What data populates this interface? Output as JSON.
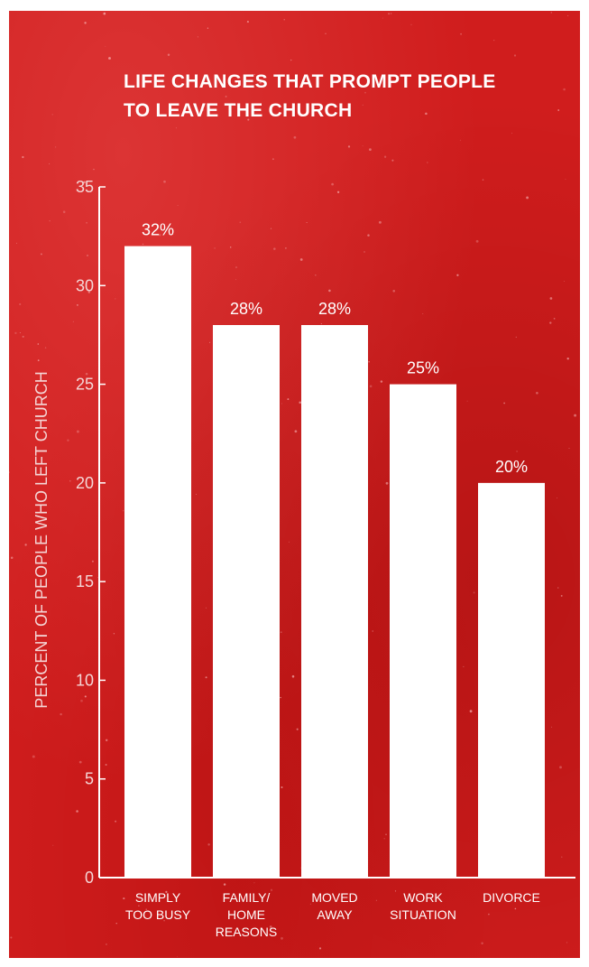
{
  "chart_data": {
    "type": "bar",
    "title": [
      "LIFE CHANGES THAT PROMPT PEOPLE",
      "TO LEAVE THE CHURCH"
    ],
    "ylabel": "PERCENT OF PEOPLE WHO LEFT CHURCH",
    "xlabel": "",
    "ylim": [
      0,
      35
    ],
    "yticks": [
      0,
      5,
      10,
      15,
      20,
      25,
      30,
      35
    ],
    "categories": [
      [
        "SIMPLY",
        "TOO BUSY"
      ],
      [
        "FAMILY/",
        "HOME",
        "REASONS"
      ],
      [
        "MOVED",
        "AWAY"
      ],
      [
        "WORK",
        "SITUATION"
      ],
      [
        "DIVORCE"
      ]
    ],
    "values": [
      32,
      28,
      28,
      25,
      20
    ],
    "data_labels": [
      "32%",
      "28%",
      "28%",
      "25%",
      "20%"
    ],
    "grid": false,
    "colors": {
      "background": "#d01d1d",
      "bar": "#ffffff",
      "text": "#ffffff"
    }
  }
}
